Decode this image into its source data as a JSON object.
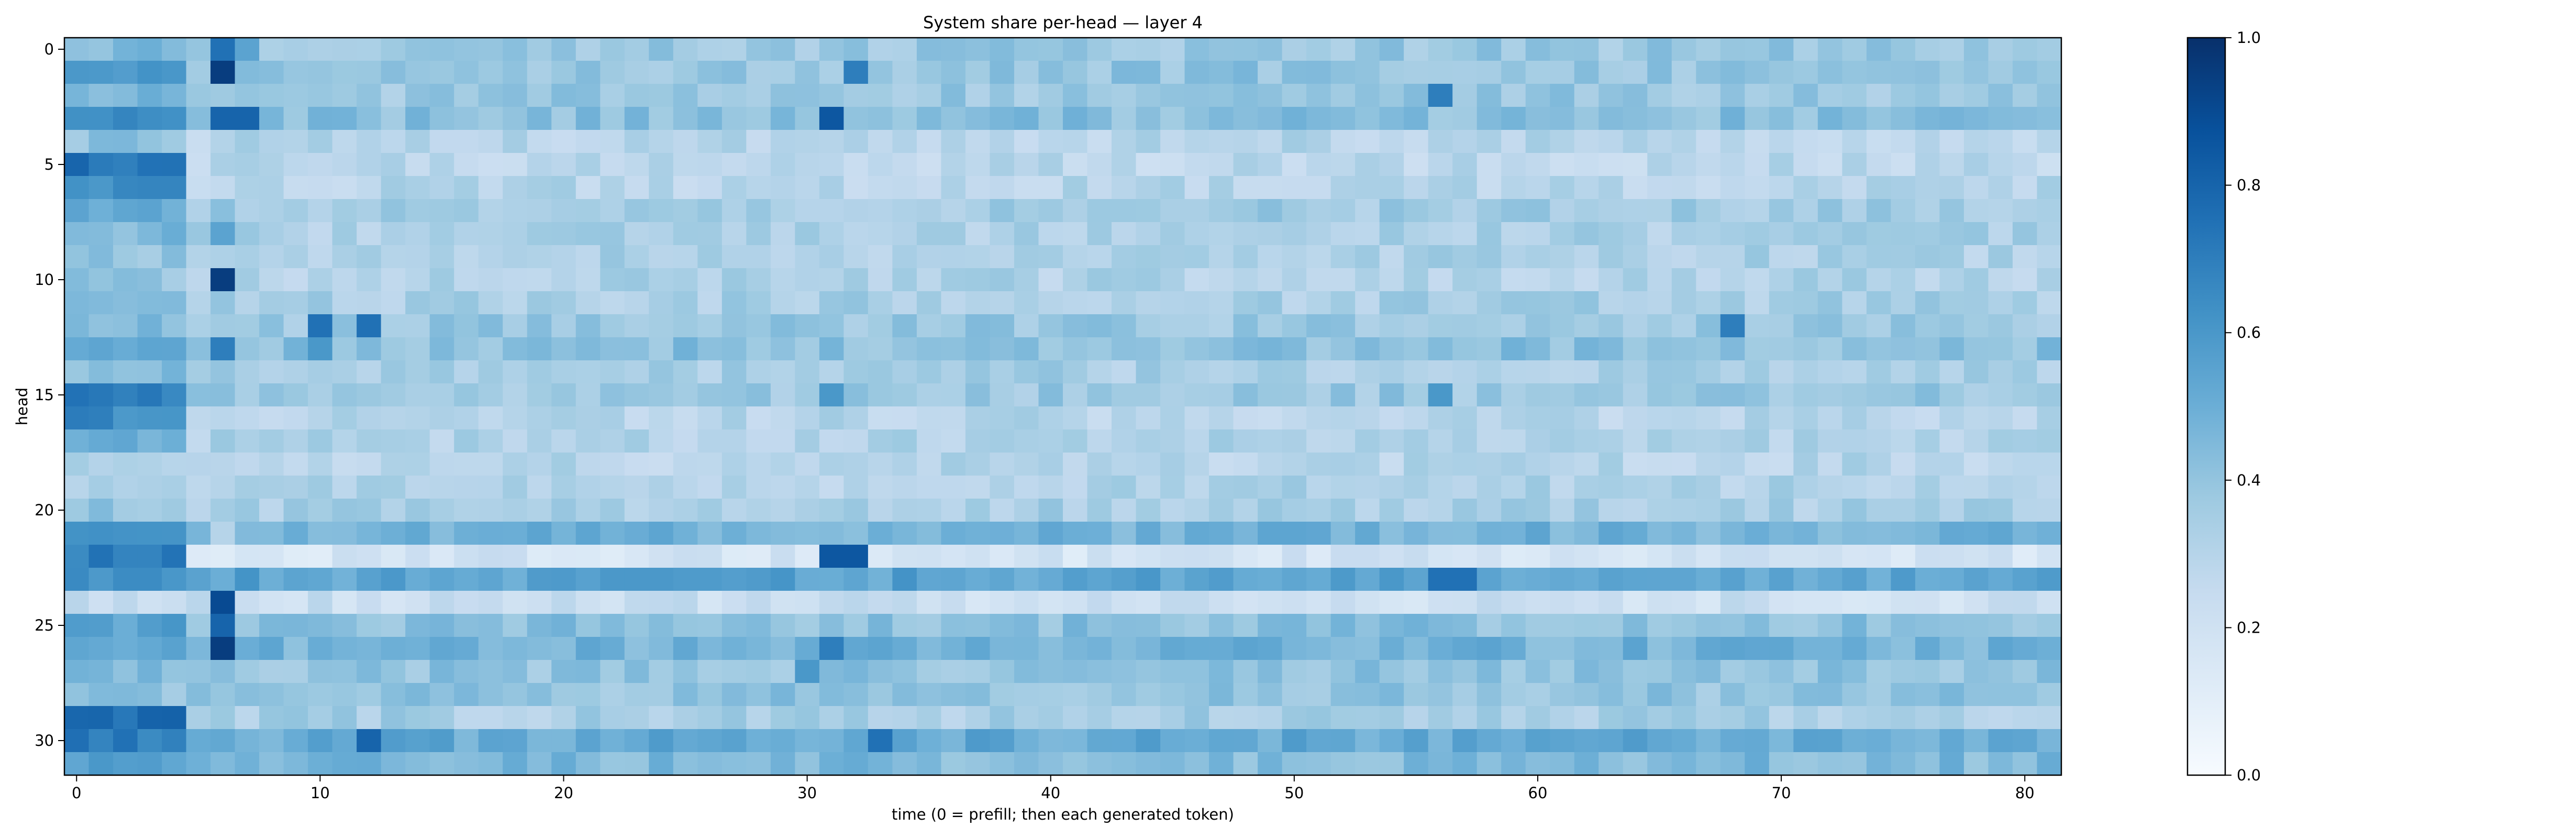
{
  "figure": {
    "title": "System share per-head — layer 4",
    "xlabel": "time (0 = prefill; then each generated token)",
    "ylabel": "head"
  },
  "chart_data": {
    "type": "heatmap",
    "title": "System share per-head — layer 4",
    "xlabel": "time (0 = prefill; then each generated token)",
    "ylabel": "head",
    "x_range": [
      0,
      81
    ],
    "y_range": [
      0,
      31
    ],
    "x_ticks": [
      0,
      10,
      20,
      30,
      40,
      50,
      60,
      70,
      80
    ],
    "y_ticks": [
      0,
      5,
      10,
      15,
      20,
      25,
      30
    ],
    "colormap": "Blues",
    "colorbar": {
      "range": [
        0.0,
        1.0
      ],
      "ticks": [
        "0.0",
        "0.2",
        "0.4",
        "0.6",
        "0.8",
        "1.0"
      ]
    },
    "grid": false,
    "row_profile": [
      {
        "head": 0,
        "base": 0.38,
        "early": 0.45,
        "spikes": {
          "6": 0.75,
          "7": 0.55
        }
      },
      {
        "head": 1,
        "base": 0.4,
        "early": 0.6,
        "spikes": {
          "6": 0.95,
          "32": 0.7
        }
      },
      {
        "head": 2,
        "base": 0.38,
        "early": 0.48,
        "spikes": {
          "56": 0.7
        }
      },
      {
        "head": 3,
        "base": 0.42,
        "early": 0.65,
        "spikes": {
          "6": 0.8,
          "7": 0.8,
          "31": 0.85
        }
      },
      {
        "head": 4,
        "base": 0.3,
        "early": 0.4,
        "spikes": {}
      },
      {
        "head": 5,
        "base": 0.28,
        "early": 0.75,
        "spikes": {}
      },
      {
        "head": 6,
        "base": 0.3,
        "early": 0.65,
        "spikes": {}
      },
      {
        "head": 7,
        "base": 0.36,
        "early": 0.5,
        "spikes": {}
      },
      {
        "head": 8,
        "base": 0.33,
        "early": 0.45,
        "spikes": {
          "6": 0.55
        }
      },
      {
        "head": 9,
        "base": 0.33,
        "early": 0.4,
        "spikes": {}
      },
      {
        "head": 10,
        "base": 0.32,
        "early": 0.4,
        "spikes": {
          "6": 0.95
        }
      },
      {
        "head": 11,
        "base": 0.34,
        "early": 0.42,
        "spikes": {}
      },
      {
        "head": 12,
        "base": 0.38,
        "early": 0.45,
        "spikes": {
          "10": 0.75,
          "12": 0.75,
          "68": 0.7
        }
      },
      {
        "head": 13,
        "base": 0.42,
        "early": 0.5,
        "spikes": {
          "6": 0.7,
          "10": 0.6
        }
      },
      {
        "head": 14,
        "base": 0.34,
        "early": 0.42,
        "spikes": {}
      },
      {
        "head": 15,
        "base": 0.38,
        "early": 0.7,
        "spikes": {
          "31": 0.6,
          "56": 0.6
        }
      },
      {
        "head": 16,
        "base": 0.3,
        "early": 0.65,
        "spikes": {}
      },
      {
        "head": 17,
        "base": 0.32,
        "early": 0.5,
        "spikes": {}
      },
      {
        "head": 18,
        "base": 0.3,
        "early": 0.35,
        "spikes": {}
      },
      {
        "head": 19,
        "base": 0.32,
        "early": 0.35,
        "spikes": {}
      },
      {
        "head": 20,
        "base": 0.34,
        "early": 0.4,
        "spikes": {}
      },
      {
        "head": 21,
        "base": 0.48,
        "early": 0.6,
        "spikes": {
          "6": 0.3
        }
      },
      {
        "head": 22,
        "base": 0.18,
        "early": 0.7,
        "spikes": {
          "31": 0.85,
          "32": 0.85
        }
      },
      {
        "head": 23,
        "base": 0.55,
        "early": 0.65,
        "spikes": {
          "56": 0.75,
          "57": 0.75
        }
      },
      {
        "head": 24,
        "base": 0.22,
        "early": 0.25,
        "spikes": {
          "6": 0.9
        }
      },
      {
        "head": 25,
        "base": 0.42,
        "early": 0.55,
        "spikes": {
          "6": 0.8
        }
      },
      {
        "head": 26,
        "base": 0.48,
        "early": 0.55,
        "spikes": {
          "6": 0.95,
          "31": 0.7
        }
      },
      {
        "head": 27,
        "base": 0.4,
        "early": 0.45,
        "spikes": {
          "30": 0.6
        }
      },
      {
        "head": 28,
        "base": 0.4,
        "early": 0.4,
        "spikes": {}
      },
      {
        "head": 29,
        "base": 0.34,
        "early": 0.75,
        "spikes": {}
      },
      {
        "head": 30,
        "base": 0.52,
        "early": 0.7,
        "spikes": {
          "12": 0.8,
          "33": 0.75
        }
      },
      {
        "head": 31,
        "base": 0.45,
        "early": 0.55,
        "spikes": {}
      }
    ]
  }
}
